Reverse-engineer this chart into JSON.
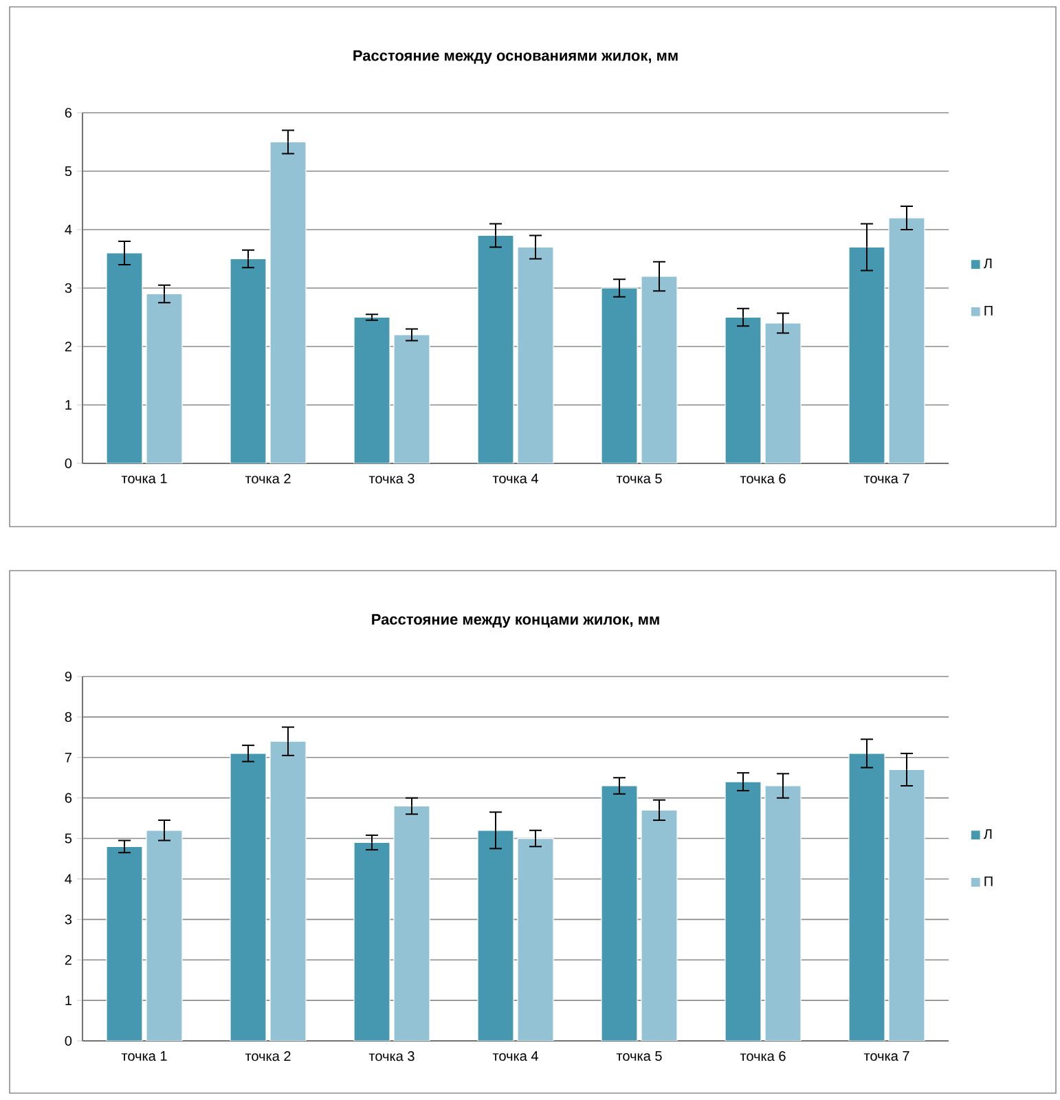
{
  "chart_data": [
    {
      "type": "bar",
      "title": "Расстояние между основаниями жилок, мм",
      "categories": [
        "точка 1",
        "точка 2",
        "точка 3",
        "точка 4",
        "точка 5",
        "точка 6",
        "точка 7"
      ],
      "series": [
        {
          "name": "Л",
          "color": "#4598b0",
          "values": [
            3.6,
            3.5,
            2.5,
            3.9,
            3.0,
            2.5,
            3.7
          ],
          "errors": [
            0.2,
            0.15,
            0.05,
            0.2,
            0.15,
            0.15,
            0.4
          ]
        },
        {
          "name": "П",
          "color": "#93c2d5",
          "values": [
            2.9,
            5.5,
            2.2,
            3.7,
            3.2,
            2.4,
            4.2
          ],
          "errors": [
            0.15,
            0.2,
            0.1,
            0.2,
            0.25,
            0.17,
            0.2
          ]
        }
      ],
      "ylim": [
        0,
        6
      ],
      "yticks": [
        0,
        1,
        2,
        3,
        4,
        5,
        6
      ],
      "grid": "y",
      "legend": "right"
    },
    {
      "type": "bar",
      "title": "Расстояние между концами жилок, мм",
      "categories": [
        "точка 1",
        "точка 2",
        "точка 3",
        "точка 4",
        "точка 5",
        "точка 6",
        "точка 7"
      ],
      "series": [
        {
          "name": "Л",
          "color": "#4598b0",
          "values": [
            4.8,
            7.1,
            4.9,
            5.2,
            6.3,
            6.4,
            7.1
          ],
          "errors": [
            0.15,
            0.2,
            0.18,
            0.45,
            0.2,
            0.22,
            0.35
          ]
        },
        {
          "name": "П",
          "color": "#93c2d5",
          "values": [
            5.2,
            7.4,
            5.8,
            5.0,
            5.7,
            6.3,
            6.7
          ],
          "errors": [
            0.25,
            0.35,
            0.2,
            0.2,
            0.25,
            0.3,
            0.4
          ]
        }
      ],
      "ylim": [
        0,
        9
      ],
      "yticks": [
        0,
        1,
        2,
        3,
        4,
        5,
        6,
        7,
        8,
        9
      ],
      "grid": "y",
      "legend": "right"
    }
  ]
}
